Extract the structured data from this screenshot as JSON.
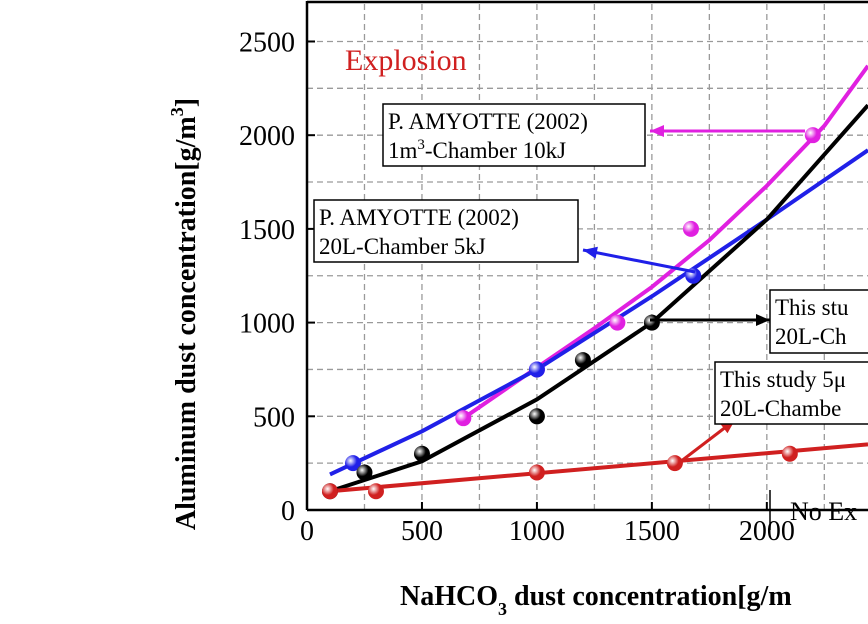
{
  "chart_data": {
    "type": "scatter",
    "ylabel": "Aluminum dust concentration[g/m",
    "ylabel_sup": "3",
    "ylabel_end": "]",
    "xlabel": "NaHCO",
    "xlabel_sub": "3",
    "xlabel_end": " dust concentration[g/m",
    "xlim": [
      0,
      2440
    ],
    "ylim": [
      0,
      2700
    ],
    "xticks": [
      0,
      500,
      1000,
      1500,
      2000
    ],
    "yticks": [
      0,
      500,
      1000,
      1500,
      2000,
      2500
    ],
    "xminorticks": [
      250,
      750,
      1250,
      1750,
      2250
    ],
    "yminorticks": [
      250,
      750,
      1250,
      1750,
      2250
    ],
    "grid": true,
    "region_labels": [
      "Explosion",
      "No Ex"
    ],
    "series": [
      {
        "color": "#e020e0",
        "lines": [
          "P. AMYOTTE (2002)",
          "1m",
          "3",
          "-Chamber 10kJ"
        ],
        "x": [
          680,
          1000,
          1350,
          1670,
          2200
        ],
        "values": [
          490,
          750,
          1000,
          1500,
          2000
        ],
        "fit_x": [
          680,
          1000,
          1250,
          1500,
          1750,
          2000,
          2250,
          2440
        ],
        "fit_values": [
          490,
          760,
          970,
          1190,
          1440,
          1730,
          2050,
          2370
        ]
      },
      {
        "color": "#2020e8",
        "lines": [
          "P. AMYOTTE (2002)",
          "20L-Chamber 5kJ"
        ],
        "x": [
          200,
          1000,
          1680
        ],
        "values": [
          250,
          750,
          1250
        ],
        "fit_x": [
          100,
          500,
          1000,
          1500,
          2000,
          2440
        ],
        "fit_values": [
          190,
          420,
          750,
          1140,
          1550,
          1920
        ]
      },
      {
        "color": "#000000",
        "lines": [
          "This stu",
          "20L-Ch"
        ],
        "x": [
          100,
          250,
          500,
          1000,
          1200,
          1500
        ],
        "values": [
          100,
          200,
          300,
          500,
          800,
          1000
        ],
        "fit_x": [
          100,
          500,
          1000,
          1500,
          2000,
          2440
        ],
        "fit_values": [
          100,
          260,
          590,
          1000,
          1550,
          2160
        ]
      },
      {
        "color": "#d02020",
        "lines": [
          "This study 5μ",
          "20L-Chambe"
        ],
        "x": [
          100,
          300,
          1000,
          1600,
          2100
        ],
        "values": [
          100,
          100,
          200,
          250,
          300
        ],
        "fit_x": [
          100,
          2440
        ],
        "fit_values": [
          100,
          350
        ]
      }
    ]
  }
}
